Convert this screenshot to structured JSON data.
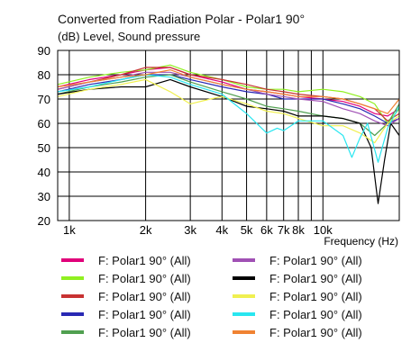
{
  "chart_data": {
    "type": "line",
    "title": "Converted from Radiation Polar - Polar1 90°",
    "ylabel": "(dB)  Level, Sound pressure",
    "xlabel": "Frequency  (Hz)",
    "x_scale": "log",
    "xlim": [
      900,
      20000
    ],
    "ylim": [
      20,
      90
    ],
    "grid": true,
    "y_ticks": [
      20,
      30,
      40,
      50,
      60,
      70,
      80,
      90
    ],
    "x_ticks": [
      {
        "value": 1000,
        "label": "1k"
      },
      {
        "value": 2000,
        "label": "2k"
      },
      {
        "value": 3000,
        "label": "3k"
      },
      {
        "value": 4000,
        "label": "4k"
      },
      {
        "value": 5000,
        "label": "5k"
      },
      {
        "value": 6000,
        "label": "6k"
      },
      {
        "value": 7000,
        "label": "7k"
      },
      {
        "value": 8000,
        "label": "8k"
      },
      {
        "value": 10000,
        "label": "10k"
      }
    ],
    "x_minor_gridlines": [
      9000,
      20000
    ],
    "series": [
      {
        "name": "F: Polar1 90°  (All)",
        "color": "#e0007a",
        "points": [
          [
            900,
            75
          ],
          [
            1200,
            78
          ],
          [
            1600,
            80
          ],
          [
            2000,
            82
          ],
          [
            2500,
            83
          ],
          [
            3000,
            80
          ],
          [
            4000,
            77
          ],
          [
            5000,
            74
          ],
          [
            6000,
            73
          ],
          [
            7000,
            72
          ],
          [
            8000,
            71
          ],
          [
            10000,
            70
          ],
          [
            12000,
            69
          ],
          [
            14000,
            67
          ],
          [
            16000,
            64
          ],
          [
            18000,
            63
          ],
          [
            20000,
            66
          ]
        ]
      },
      {
        "name": "F: Polar1 90°  (All)",
        "color": "#90f020",
        "points": [
          [
            900,
            76
          ],
          [
            1200,
            79
          ],
          [
            1600,
            81
          ],
          [
            2000,
            82
          ],
          [
            2500,
            84
          ],
          [
            3000,
            81
          ],
          [
            4000,
            78
          ],
          [
            5000,
            75
          ],
          [
            6000,
            74
          ],
          [
            7000,
            74
          ],
          [
            8000,
            73
          ],
          [
            10000,
            74
          ],
          [
            12000,
            73
          ],
          [
            14000,
            71
          ],
          [
            16000,
            68
          ],
          [
            18000,
            60
          ],
          [
            20000,
            66
          ]
        ]
      },
      {
        "name": "F: Polar1 90°  (All)",
        "color": "#c83232",
        "points": [
          [
            900,
            74
          ],
          [
            1200,
            77
          ],
          [
            1600,
            80
          ],
          [
            2000,
            83
          ],
          [
            2500,
            83
          ],
          [
            3000,
            80
          ],
          [
            4000,
            78
          ],
          [
            5000,
            76
          ],
          [
            6000,
            74
          ],
          [
            7000,
            73
          ],
          [
            8000,
            72
          ],
          [
            10000,
            71
          ],
          [
            12000,
            70
          ],
          [
            14000,
            68
          ],
          [
            16000,
            66
          ],
          [
            18000,
            61
          ],
          [
            20000,
            64
          ]
        ]
      },
      {
        "name": "F: Polar1 90°  (All)",
        "color": "#2828b4",
        "points": [
          [
            900,
            73
          ],
          [
            1200,
            76
          ],
          [
            1600,
            78
          ],
          [
            2000,
            80
          ],
          [
            2500,
            80
          ],
          [
            3000,
            78
          ],
          [
            4000,
            75
          ],
          [
            5000,
            73
          ],
          [
            6000,
            72
          ],
          [
            7000,
            70
          ],
          [
            8000,
            70
          ],
          [
            10000,
            70
          ],
          [
            12000,
            68
          ],
          [
            14000,
            66
          ],
          [
            16000,
            63
          ],
          [
            18000,
            60
          ],
          [
            20000,
            62
          ]
        ]
      },
      {
        "name": "F: Polar1 90°  (All)",
        "color": "#50a050",
        "points": [
          [
            900,
            72
          ],
          [
            1200,
            75
          ],
          [
            1600,
            77
          ],
          [
            2000,
            79
          ],
          [
            2500,
            80
          ],
          [
            3000,
            77
          ],
          [
            4000,
            73
          ],
          [
            5000,
            70
          ],
          [
            6000,
            67
          ],
          [
            7000,
            66
          ],
          [
            8000,
            65
          ],
          [
            10000,
            63
          ],
          [
            12000,
            62
          ],
          [
            14000,
            60
          ],
          [
            16000,
            55
          ],
          [
            18000,
            60
          ],
          [
            20000,
            68
          ]
        ]
      },
      {
        "name": "F: Polar1 90°  (All)",
        "color": "#a050b4",
        "points": [
          [
            900,
            74
          ],
          [
            1200,
            77
          ],
          [
            1600,
            79
          ],
          [
            2000,
            81
          ],
          [
            2500,
            81
          ],
          [
            3000,
            79
          ],
          [
            4000,
            76
          ],
          [
            5000,
            74
          ],
          [
            6000,
            72
          ],
          [
            7000,
            71
          ],
          [
            8000,
            70
          ],
          [
            10000,
            69
          ],
          [
            12000,
            66
          ],
          [
            14000,
            64
          ],
          [
            16000,
            61
          ],
          [
            18000,
            59
          ],
          [
            20000,
            62
          ]
        ]
      },
      {
        "name": "F: Polar1 90°  (All)",
        "color": "#000000",
        "points": [
          [
            900,
            72
          ],
          [
            1200,
            74
          ],
          [
            1600,
            75
          ],
          [
            2000,
            75
          ],
          [
            2500,
            78
          ],
          [
            3000,
            75
          ],
          [
            4000,
            71
          ],
          [
            5000,
            67
          ],
          [
            6000,
            66
          ],
          [
            7000,
            65
          ],
          [
            8000,
            63
          ],
          [
            10000,
            63
          ],
          [
            12000,
            62
          ],
          [
            14000,
            60
          ],
          [
            15500,
            50
          ],
          [
            16500,
            27
          ],
          [
            17500,
            45
          ],
          [
            18500,
            60
          ],
          [
            20000,
            55
          ]
        ]
      },
      {
        "name": "F: Polar1 90°  (All)",
        "color": "#f0f050",
        "points": [
          [
            900,
            71
          ],
          [
            1200,
            74
          ],
          [
            1600,
            76
          ],
          [
            2000,
            78
          ],
          [
            2500,
            73
          ],
          [
            3000,
            68
          ],
          [
            3600,
            70
          ],
          [
            4000,
            71
          ],
          [
            5000,
            68
          ],
          [
            6000,
            65
          ],
          [
            7000,
            64
          ],
          [
            8000,
            62
          ],
          [
            10000,
            59
          ],
          [
            12000,
            59
          ],
          [
            14000,
            56
          ],
          [
            16000,
            52
          ],
          [
            18000,
            60
          ],
          [
            20000,
            63
          ]
        ]
      },
      {
        "name": "F: Polar1 90°  (All)",
        "color": "#28e6f0",
        "points": [
          [
            900,
            73
          ],
          [
            1200,
            75
          ],
          [
            1600,
            78
          ],
          [
            2000,
            80
          ],
          [
            2500,
            79
          ],
          [
            3000,
            76
          ],
          [
            4000,
            72
          ],
          [
            5000,
            64
          ],
          [
            6000,
            56
          ],
          [
            6600,
            58
          ],
          [
            7000,
            57
          ],
          [
            8000,
            61
          ],
          [
            10000,
            61
          ],
          [
            12000,
            55
          ],
          [
            13000,
            46
          ],
          [
            14000,
            54
          ],
          [
            15000,
            60
          ],
          [
            16500,
            44
          ],
          [
            18000,
            58
          ],
          [
            20000,
            67
          ]
        ]
      },
      {
        "name": "F: Polar1 90°  (All)",
        "color": "#f08232",
        "points": [
          [
            900,
            75
          ],
          [
            1200,
            77
          ],
          [
            1600,
            79
          ],
          [
            2000,
            80
          ],
          [
            2500,
            82
          ],
          [
            3000,
            79
          ],
          [
            4000,
            76
          ],
          [
            5000,
            74
          ],
          [
            6000,
            73
          ],
          [
            7000,
            72
          ],
          [
            8000,
            71
          ],
          [
            10000,
            71
          ],
          [
            12000,
            70
          ],
          [
            14000,
            68
          ],
          [
            16000,
            66
          ],
          [
            18000,
            64
          ],
          [
            20000,
            70
          ]
        ]
      }
    ]
  }
}
